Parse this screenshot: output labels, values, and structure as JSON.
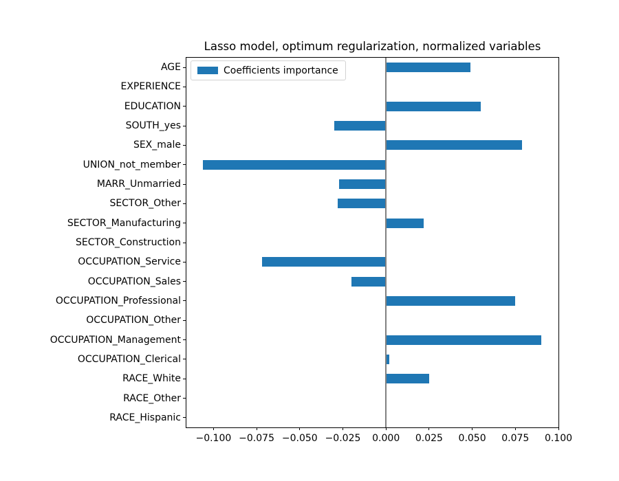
{
  "chart_data": {
    "type": "bar",
    "orientation": "horizontal",
    "title": "Lasso model, optimum regularization, normalized variables",
    "xlabel": "",
    "ylabel": "",
    "grid": false,
    "bar_color": "#1f77b4",
    "zero_line_color": "#808080",
    "xlim": [
      -0.1157,
      0.1
    ],
    "legend": {
      "entries": [
        "Coefficients importance"
      ],
      "position": "upper left"
    },
    "categories": [
      "AGE",
      "EXPERIENCE",
      "EDUCATION",
      "SOUTH_yes",
      "SEX_male",
      "UNION_not_member",
      "MARR_Unmarried",
      "SECTOR_Other",
      "SECTOR_Manufacturing",
      "SECTOR_Construction",
      "OCCUPATION_Service",
      "OCCUPATION_Sales",
      "OCCUPATION_Professional",
      "OCCUPATION_Other",
      "OCCUPATION_Management",
      "OCCUPATION_Clerical",
      "RACE_White",
      "RACE_Other",
      "RACE_Hispanic"
    ],
    "values": [
      0.049,
      0.0,
      0.055,
      -0.03,
      0.079,
      -0.106,
      -0.027,
      -0.028,
      0.022,
      0.0,
      -0.072,
      -0.02,
      0.075,
      0.0,
      0.09,
      0.002,
      0.025,
      0.0,
      0.0
    ],
    "xticks": [
      -0.1,
      -0.075,
      -0.05,
      -0.025,
      0.0,
      0.025,
      0.05,
      0.075,
      0.1
    ],
    "xtick_labels": [
      "−0.100",
      "−0.075",
      "−0.050",
      "−0.025",
      "0.000",
      "0.025",
      "0.050",
      "0.075",
      "0.100"
    ]
  }
}
